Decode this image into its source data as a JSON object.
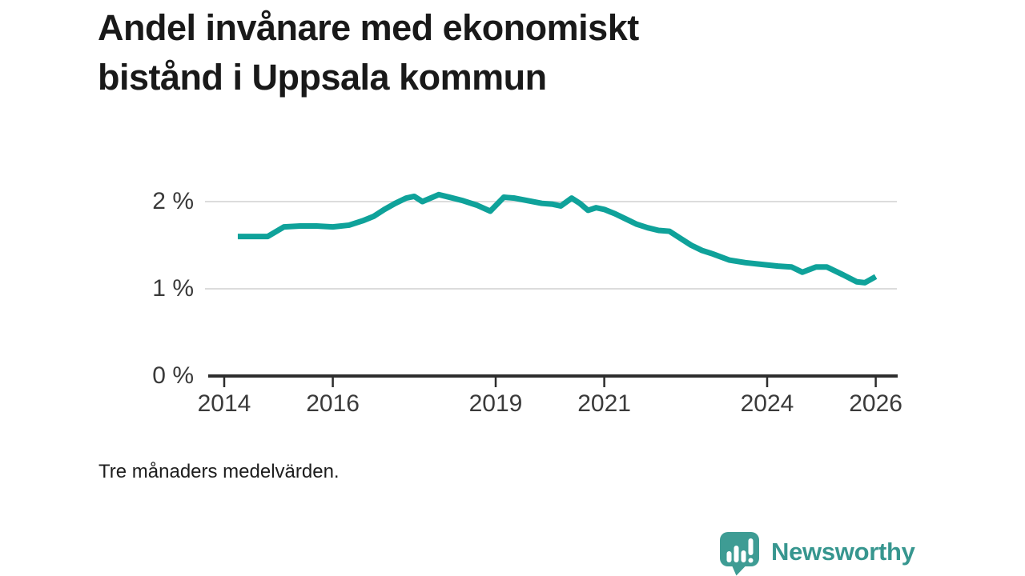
{
  "header": {
    "title": "Andel invånare med ekonomiskt bistånd i Uppsala kommun"
  },
  "footnote": "Tre månaders medelvärden.",
  "branding": {
    "name": "Newsworthy",
    "icon": "newsworthy-speech-bubble-chart-icon",
    "icon_color": "#3e9c94",
    "text_color": "#37968f"
  },
  "chart_data": {
    "type": "line",
    "title": "Andel invånare med ekonomiskt bistånd i Uppsala kommun",
    "subtitle": "Tre månaders medelvärden.",
    "xlabel": "",
    "ylabel": "",
    "grid": "horizontal-only",
    "legend": "none",
    "xlim": [
      2013.7,
      2026.4
    ],
    "ylim": [
      0,
      2.35
    ],
    "x_ticks": [
      2014,
      2016,
      2019,
      2021,
      2024,
      2026
    ],
    "x_tick_labels": [
      "2014",
      "2016",
      "2019",
      "2021",
      "2024",
      "2026"
    ],
    "y_ticks": [
      0,
      1,
      2
    ],
    "y_tick_labels": [
      "0 %",
      "1 %",
      "2 %"
    ],
    "colors": {
      "line": "#0fa29a",
      "gridline": "#dcdcdc",
      "axis": "#2d2d2d",
      "tick_text": "#3a3a3a"
    },
    "series": [
      {
        "name": "Andel invånare med ekonomiskt bistånd (%)",
        "color": "#0fa29a",
        "x": [
          2014.25,
          2014.6,
          2014.8,
          2015.1,
          2015.4,
          2015.7,
          2016.0,
          2016.3,
          2016.55,
          2016.75,
          2016.95,
          2017.15,
          2017.35,
          2017.5,
          2017.65,
          2017.95,
          2018.15,
          2018.4,
          2018.65,
          2018.9,
          2019.15,
          2019.35,
          2019.6,
          2019.85,
          2020.05,
          2020.2,
          2020.4,
          2020.55,
          2020.7,
          2020.85,
          2021.0,
          2021.2,
          2021.4,
          2021.6,
          2021.8,
          2022.0,
          2022.2,
          2022.4,
          2022.6,
          2022.8,
          2023.0,
          2023.3,
          2023.6,
          2023.9,
          2024.2,
          2024.45,
          2024.65,
          2024.9,
          2025.1,
          2025.4,
          2025.65,
          2025.8,
          2026.0
        ],
        "y": [
          1.6,
          1.6,
          1.6,
          1.71,
          1.72,
          1.72,
          1.71,
          1.73,
          1.78,
          1.83,
          1.91,
          1.98,
          2.04,
          2.06,
          2.0,
          2.08,
          2.05,
          2.01,
          1.96,
          1.89,
          2.05,
          2.04,
          2.01,
          1.98,
          1.97,
          1.95,
          2.04,
          1.98,
          1.9,
          1.93,
          1.91,
          1.86,
          1.8,
          1.74,
          1.7,
          1.67,
          1.66,
          1.58,
          1.5,
          1.44,
          1.4,
          1.33,
          1.3,
          1.28,
          1.26,
          1.25,
          1.19,
          1.25,
          1.25,
          1.16,
          1.08,
          1.07,
          1.14
        ]
      }
    ]
  }
}
